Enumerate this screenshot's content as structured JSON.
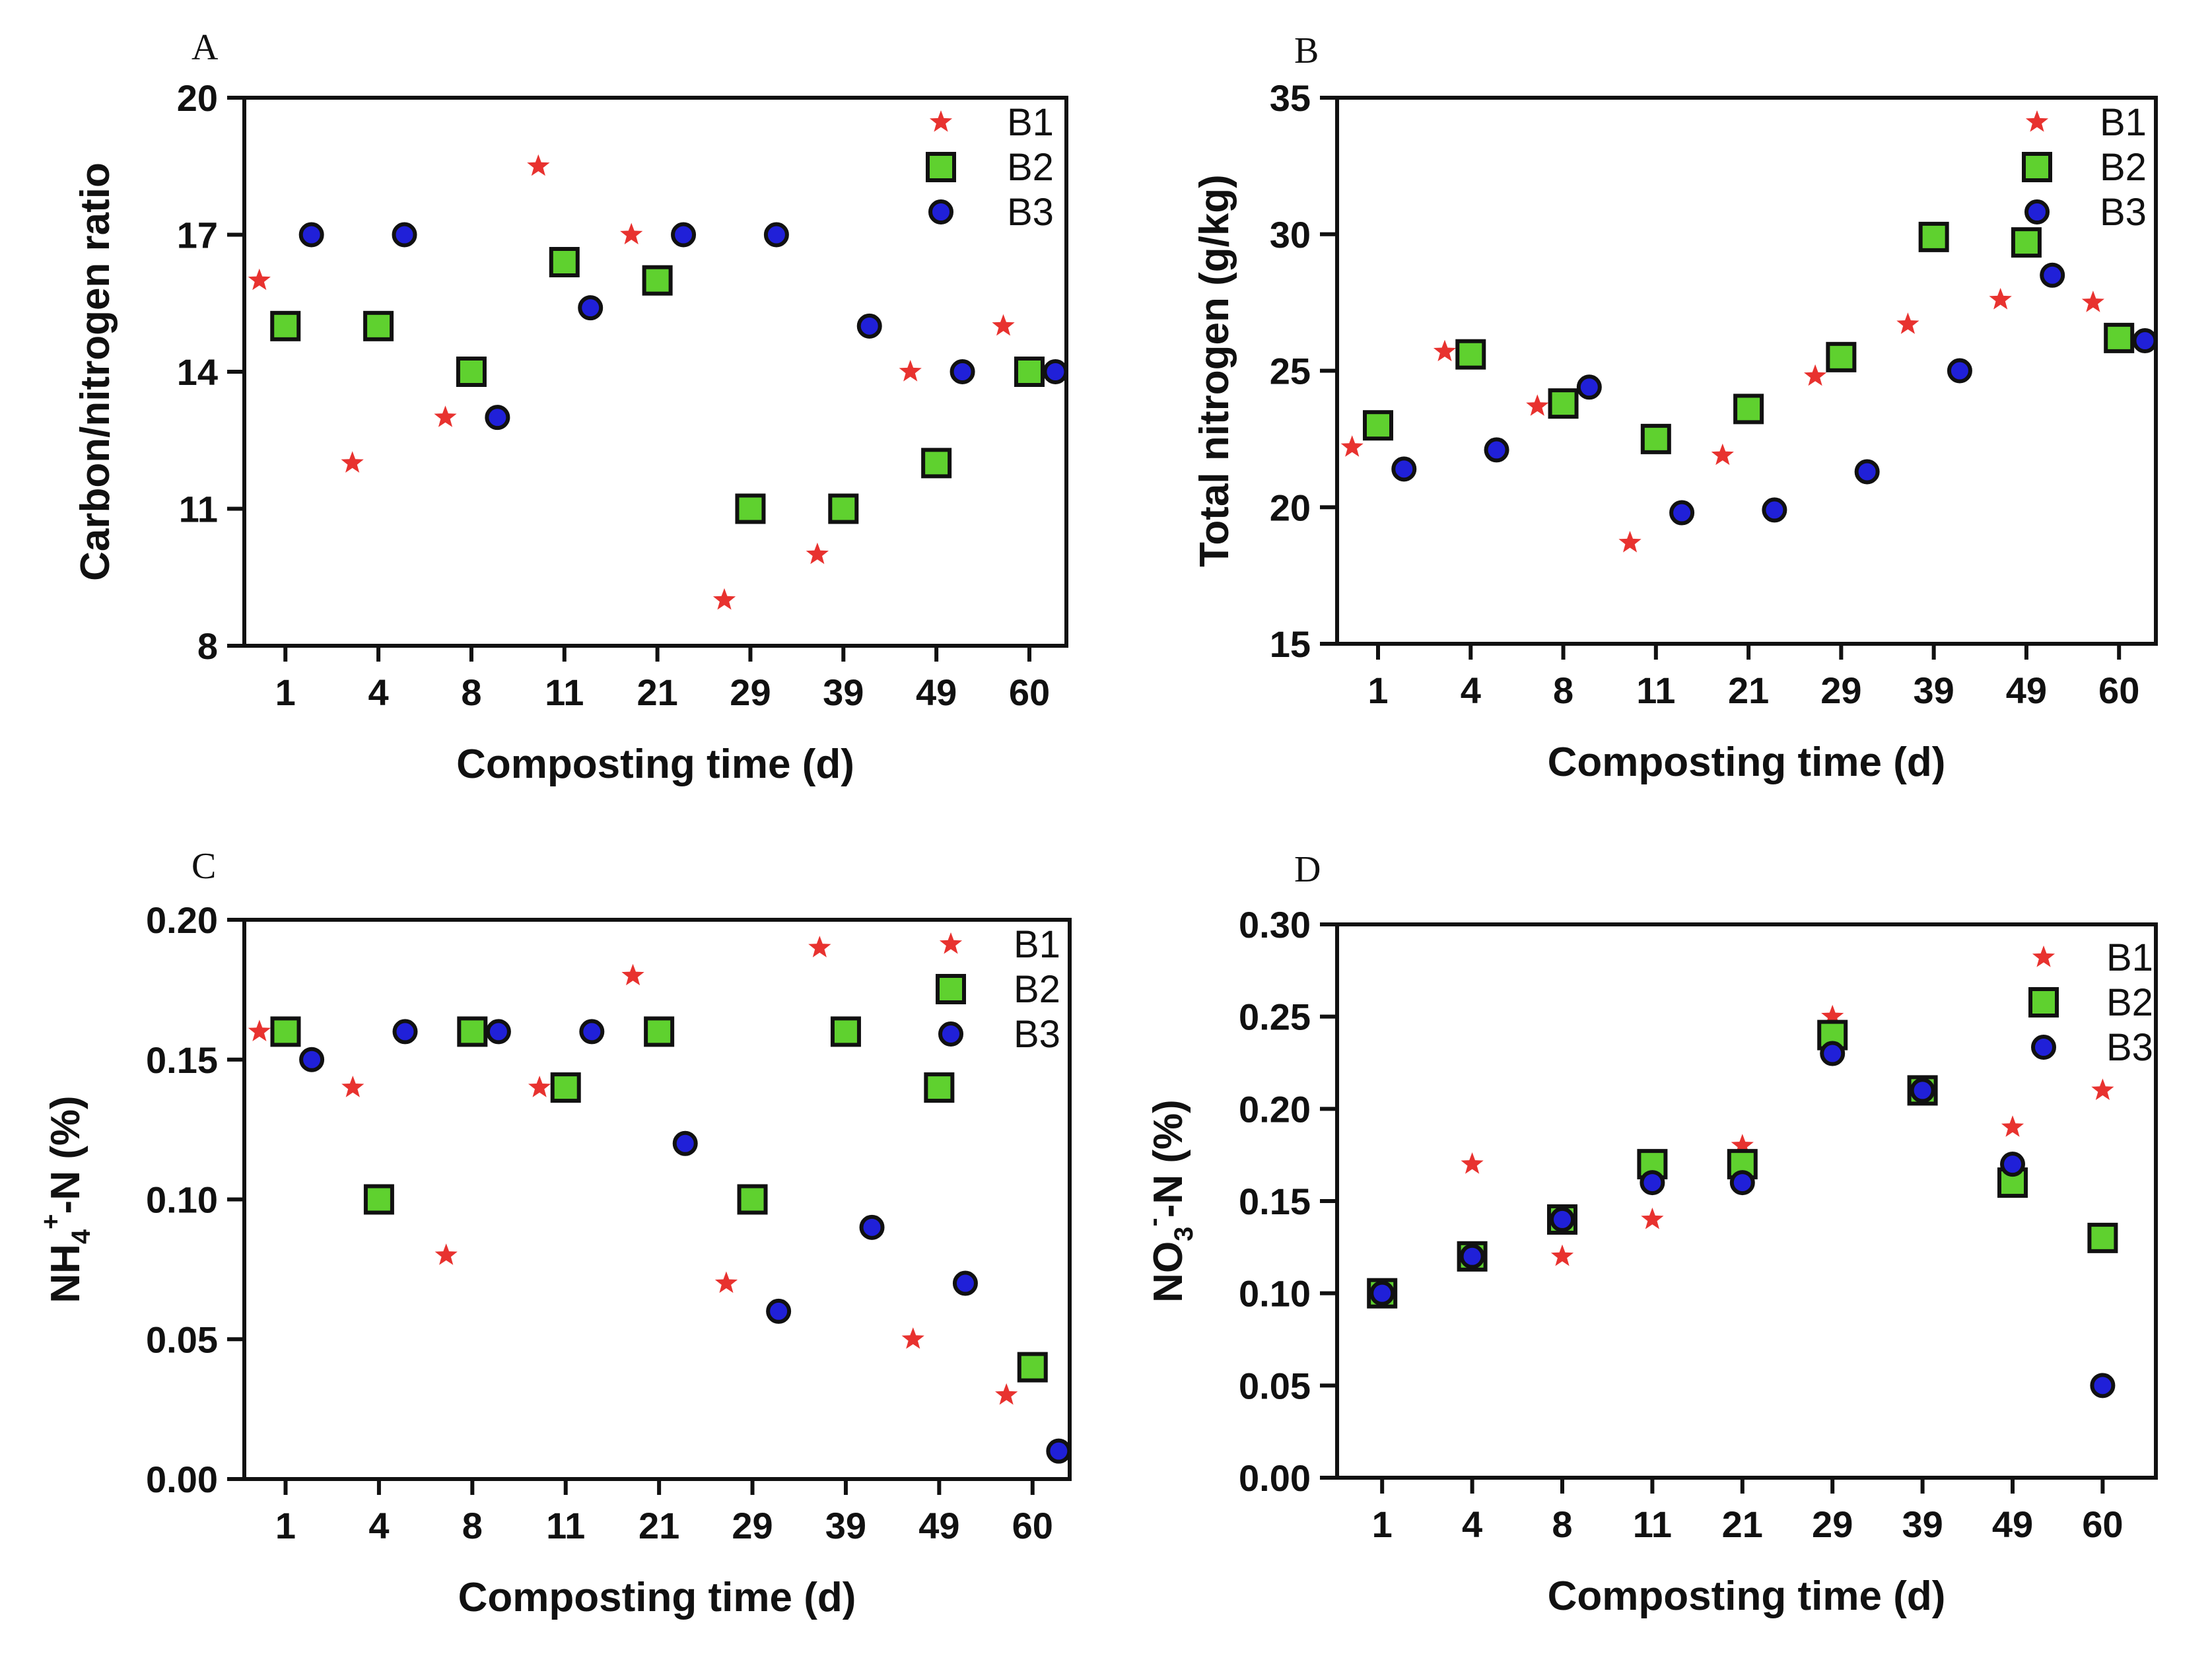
{
  "chart_data": [
    {
      "type": "scatter",
      "panel": "A",
      "title": "",
      "xlabel": "Composting time (d)",
      "ylabel": "Carbon/nitrogen ratio",
      "categories": [
        "1",
        "4",
        "8",
        "11",
        "21",
        "29",
        "39",
        "49",
        "60"
      ],
      "ylim": [
        8,
        20
      ],
      "yticks": [
        8,
        11,
        14,
        17,
        20
      ],
      "series": [
        {
          "name": "B1",
          "marker": "star",
          "color": "#e8322f",
          "values": [
            16,
            12,
            13,
            18.5,
            17,
            9,
            10,
            14,
            15
          ]
        },
        {
          "name": "B2",
          "marker": "square",
          "color": "#5fd12f",
          "values": [
            15,
            15,
            14,
            16.4,
            16,
            11,
            11,
            12,
            14
          ]
        },
        {
          "name": "B3",
          "marker": "circle",
          "color": "#2020d8",
          "values": [
            17,
            17,
            13,
            15.4,
            17,
            17,
            15,
            14,
            14
          ]
        }
      ],
      "legend": "top-right"
    },
    {
      "type": "scatter",
      "panel": "B",
      "title": "",
      "xlabel": "Composting time (d)",
      "ylabel": "Total  nitrogen (g/kg)",
      "categories": [
        "1",
        "4",
        "8",
        "11",
        "21",
        "29",
        "39",
        "49",
        "60"
      ],
      "ylim": [
        15,
        35
      ],
      "yticks": [
        15,
        20,
        25,
        30,
        35
      ],
      "series": [
        {
          "name": "B1",
          "marker": "star",
          "color": "#e8322f",
          "values": [
            22.2,
            25.7,
            23.7,
            18.7,
            21.9,
            24.8,
            26.7,
            27.6,
            27.5
          ]
        },
        {
          "name": "B2",
          "marker": "square",
          "color": "#5fd12f",
          "values": [
            23,
            25.6,
            23.8,
            22.5,
            23.6,
            25.5,
            29.9,
            29.7,
            26.2
          ]
        },
        {
          "name": "B3",
          "marker": "circle",
          "color": "#2020d8",
          "values": [
            21.4,
            22.1,
            24.4,
            19.8,
            19.9,
            21.3,
            25,
            28.5,
            26.1
          ]
        }
      ],
      "legend": "top-right"
    },
    {
      "type": "scatter",
      "panel": "C",
      "title": "",
      "xlabel": "Composting time (d)",
      "ylabel_main": "NH",
      "ylabel_sub": "4",
      "ylabel_sup": "+",
      "ylabel_rest": "-N (%)",
      "categories": [
        "1",
        "4",
        "8",
        "11",
        "21",
        "29",
        "39",
        "49",
        "60"
      ],
      "ylim": [
        0,
        0.2
      ],
      "yticks": [
        "0.00",
        "0.05",
        "0.10",
        "0.15",
        "0.20"
      ],
      "series": [
        {
          "name": "B1",
          "marker": "star",
          "color": "#e8322f",
          "values": [
            0.16,
            0.14,
            0.08,
            0.14,
            0.18,
            0.07,
            0.19,
            0.05,
            0.03
          ]
        },
        {
          "name": "B2",
          "marker": "square",
          "color": "#5fd12f",
          "values": [
            0.16,
            0.1,
            0.16,
            0.14,
            0.16,
            0.1,
            0.16,
            0.14,
            0.04
          ]
        },
        {
          "name": "B3",
          "marker": "circle",
          "color": "#2020d8",
          "values": [
            0.15,
            0.16,
            0.16,
            0.16,
            0.12,
            0.06,
            0.09,
            0.07,
            0.01
          ]
        }
      ],
      "legend": "top-right"
    },
    {
      "type": "scatter",
      "panel": "D",
      "title": "",
      "xlabel": "Composting time (d)",
      "ylabel_main": "NO",
      "ylabel_sub": "3",
      "ylabel_sup": "-",
      "ylabel_rest": "-N (%)",
      "categories": [
        "1",
        "4",
        "8",
        "11",
        "21",
        "29",
        "39",
        "49",
        "60"
      ],
      "ylim": [
        0,
        0.3
      ],
      "yticks": [
        "0.00",
        "0.05",
        "0.10",
        "0.15",
        "0.20",
        "0.25",
        "0.30"
      ],
      "series": [
        {
          "name": "B1",
          "marker": "star",
          "color": "#e8322f",
          "values": [
            0.1,
            0.17,
            0.12,
            0.14,
            0.18,
            0.25,
            0.21,
            0.19,
            0.21
          ]
        },
        {
          "name": "B2",
          "marker": "square",
          "color": "#5fd12f",
          "values": [
            0.1,
            0.12,
            0.14,
            0.17,
            0.17,
            0.24,
            0.21,
            0.16,
            0.13
          ]
        },
        {
          "name": "B3",
          "marker": "circle",
          "color": "#2020d8",
          "values": [
            0.1,
            0.12,
            0.14,
            0.16,
            0.16,
            0.23,
            0.21,
            0.17,
            0.05
          ]
        }
      ],
      "legend": "top-right"
    }
  ]
}
